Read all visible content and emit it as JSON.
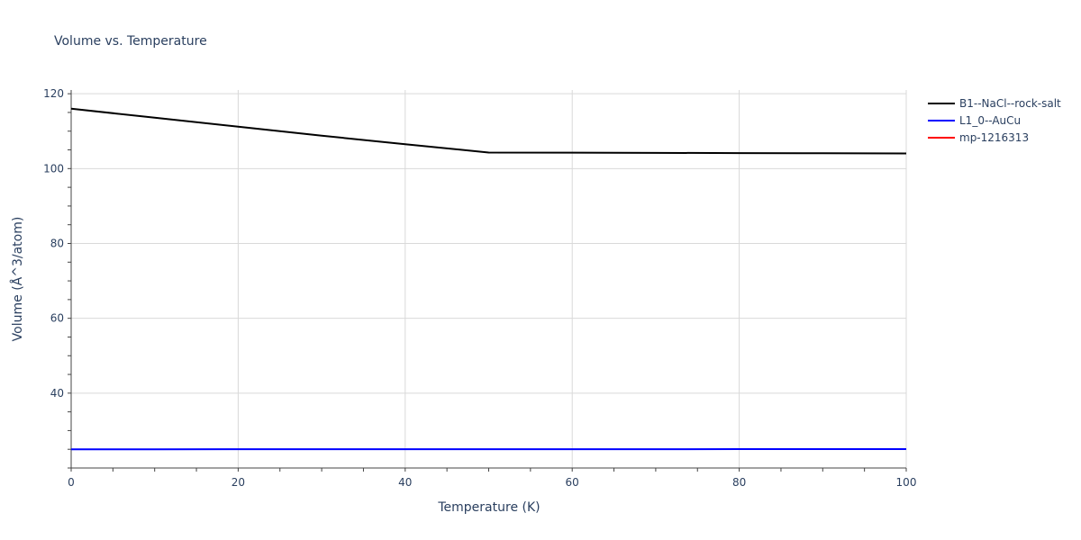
{
  "chart_data": {
    "type": "line",
    "title": "Volume vs. Temperature",
    "xlabel": "Temperature (K)",
    "ylabel": "Volume (Å^3/atom)",
    "xlim": [
      0,
      100
    ],
    "ylim": [
      20,
      121
    ],
    "x_ticks": [
      0,
      20,
      40,
      60,
      80,
      100
    ],
    "y_ticks": [
      40,
      60,
      80,
      100,
      120
    ],
    "grid": true,
    "legend_position": "top-right",
    "series": [
      {
        "name": "B1--NaCl--rock-salt",
        "color": "#000000",
        "x": [
          0,
          10,
          20,
          30,
          40,
          50,
          60,
          70,
          80,
          90,
          100
        ],
        "y": [
          116.0,
          113.6,
          111.2,
          108.8,
          106.5,
          104.3,
          104.25,
          104.2,
          104.15,
          104.1,
          104.05
        ]
      },
      {
        "name": "L1_0--AuCu",
        "color": "#0000ff",
        "x": [
          0,
          10,
          20,
          30,
          40,
          50,
          60,
          70,
          80,
          90,
          100
        ],
        "y": [
          25.0,
          25.0,
          25.01,
          25.01,
          25.02,
          25.02,
          25.03,
          25.03,
          25.04,
          25.05,
          25.06
        ]
      },
      {
        "name": "mp-1216313",
        "color": "#ff0000",
        "x": [],
        "y": []
      }
    ]
  }
}
